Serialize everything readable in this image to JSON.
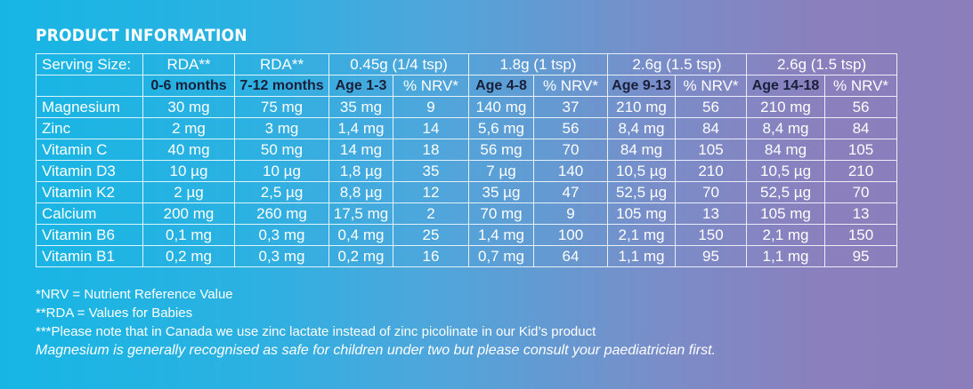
{
  "title": "PRODUCT INFORMATION",
  "header": {
    "serving_label": "Serving Size:",
    "cols": [
      "RDA**",
      "RDA**",
      "0.45g (1/4 tsp)",
      "1.8g (1 tsp)",
      "2.6g (1.5 tsp)",
      "2.6g (1.5 tsp)"
    ]
  },
  "subheader": [
    "0-6 months",
    "7-12 months",
    "Age 1-3",
    "% NRV*",
    "Age 4-8",
    "% NRV*",
    "Age 9-13",
    "% NRV*",
    "Age 14-18",
    "% NRV*"
  ],
  "rows": [
    {
      "name": "Magnesium",
      "values": [
        "30 mg",
        "75 mg",
        "35 mg",
        "9",
        "140 mg",
        "37",
        "210 mg",
        "56",
        "210 mg",
        "56"
      ]
    },
    {
      "name": "Zinc",
      "values": [
        "2 mg",
        "3 mg",
        "1,4 mg",
        "14",
        "5,6 mg",
        "56",
        "8,4 mg",
        "84",
        "8,4 mg",
        "84"
      ]
    },
    {
      "name": "Vitamin C",
      "values": [
        "40 mg",
        "50 mg",
        "14 mg",
        "18",
        "56 mg",
        "70",
        "84 mg",
        "105",
        "84 mg",
        "105"
      ]
    },
    {
      "name": "Vitamin D3",
      "values": [
        "10 µg",
        "10 µg",
        "1,8 µg",
        "35",
        "7 µg",
        "140",
        "10,5 µg",
        "210",
        "10,5 µg",
        "210"
      ]
    },
    {
      "name": "Vitamin K2",
      "values": [
        "2 µg",
        "2,5 µg",
        "8,8 µg",
        "12",
        "35 µg",
        "47",
        "52,5 µg",
        "70",
        "52,5 µg",
        "70"
      ]
    },
    {
      "name": "Calcium",
      "values": [
        "200 mg",
        "260 mg",
        "17,5 mg",
        "2",
        "70 mg",
        "9",
        "105 mg",
        "13",
        "105 mg",
        "13"
      ]
    },
    {
      "name": "Vitamin B6",
      "values": [
        "0,1 mg",
        "0,3 mg",
        "0,4 mg",
        "25",
        "1,4 mg",
        "100",
        "2,1 mg",
        "150",
        "2,1 mg",
        "150"
      ]
    },
    {
      "name": "Vitamin B1",
      "values": [
        "0,2 mg",
        "0,3 mg",
        "0,2 mg",
        "16",
        "0,7 mg",
        "64",
        "1,1 mg",
        "95",
        "1,1 mg",
        "95"
      ]
    }
  ],
  "notes": [
    "*NRV = Nutrient Reference Value",
    "**RDA = Values for Babies",
    "***Please note that in Canada we use zinc lactate instead of zinc picolinate in our Kid’s product"
  ],
  "disclaimer": "Magnesium is generally recognised as safe for children under two but please consult your paediatrician first."
}
